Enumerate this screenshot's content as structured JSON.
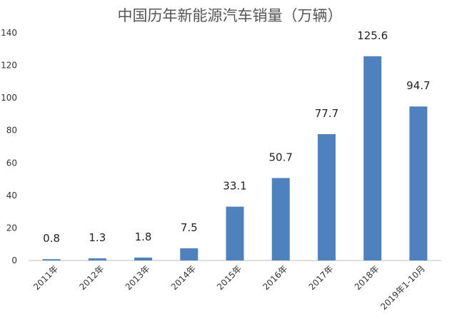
{
  "chart_data": {
    "type": "bar",
    "title": "中国历年新能源汽车销量（万辆）",
    "xlabel": "",
    "ylabel": "",
    "categories": [
      "2011年",
      "2012年",
      "2013年",
      "2014年",
      "2015年",
      "2016年",
      "2017年",
      "2018年",
      "2019年1-10月"
    ],
    "values": [
      0.8,
      1.3,
      1.8,
      7.5,
      33.1,
      50.7,
      77.7,
      125.6,
      94.7
    ],
    "data_labels": [
      "0.8",
      "1.3",
      "1.8",
      "7.5",
      "33.1",
      "50.7",
      "77.7",
      "125.6",
      "94.7"
    ],
    "ylim": [
      0,
      140
    ],
    "yticks": [
      0,
      20,
      40,
      60,
      80,
      100,
      120,
      140
    ],
    "grid": false,
    "legend": "none",
    "bar_color": "#4f81bd"
  }
}
